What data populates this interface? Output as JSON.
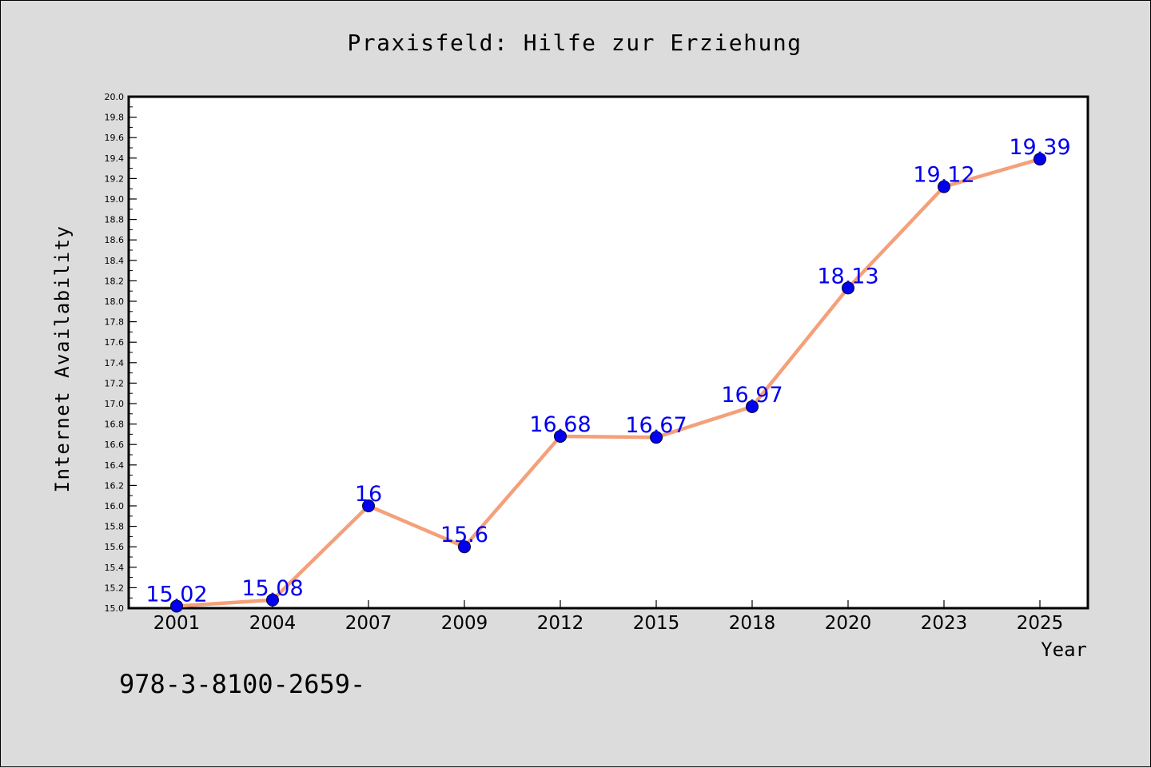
{
  "chart_data": {
    "type": "line",
    "title": "Praxisfeld: Hilfe zur Erziehung",
    "xlabel": "Year",
    "ylabel": "Internet Availability",
    "categories": [
      "2001",
      "2004",
      "2007",
      "2009",
      "2012",
      "2015",
      "2018",
      "2020",
      "2023",
      "2025"
    ],
    "series": [
      {
        "values": [
          15.02,
          15.08,
          16.0,
          15.6,
          16.68,
          16.67,
          16.97,
          18.13,
          19.12,
          19.39
        ],
        "labels": [
          "15.02",
          "15.08",
          "16",
          "15.6",
          "16.68",
          "16.67",
          "16.97",
          "18.13",
          "19.12",
          "19.39"
        ],
        "line_color": "#f4a07a",
        "marker_color": "#0000ee"
      }
    ],
    "ylim": [
      15.0,
      20.0
    ],
    "yticks": [
      "15.0",
      "15.2",
      "15.4",
      "15.6",
      "15.8",
      "16.0",
      "16.2",
      "16.4",
      "16.6",
      "16.8",
      "17.0",
      "17.2",
      "17.4",
      "17.6",
      "17.8",
      "18.0",
      "18.2",
      "18.4",
      "18.6",
      "18.8",
      "19.0",
      "19.2",
      "19.4",
      "19.6",
      "19.8",
      "20.0"
    ],
    "grid": false,
    "label_color": "#0000ee"
  },
  "footnote": "978-3-8100-2659-"
}
